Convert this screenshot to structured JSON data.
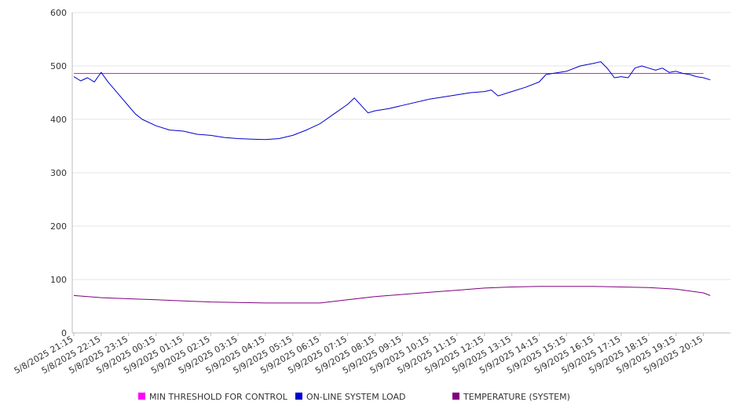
{
  "chart_data": {
    "type": "line",
    "title": "",
    "xlabel": "",
    "ylabel": "",
    "ylim": [
      0,
      600
    ],
    "yticks": [
      0,
      100,
      200,
      300,
      400,
      500,
      600
    ],
    "grid": true,
    "legend_position": "bottom",
    "xticks": [
      "5/8/2025 21:15",
      "5/8/2025 22:15",
      "5/8/2025 23:15",
      "5/9/2025 00:15",
      "5/9/2025 01:15",
      "5/9/2025 02:15",
      "5/9/2025 03:15",
      "5/9/2025 04:15",
      "5/9/2025 05:15",
      "5/9/2025 06:15",
      "5/9/2025 07:15",
      "5/9/2025 08:15",
      "5/9/2025 09:15",
      "5/9/2025 10:15",
      "5/9/2025 11:15",
      "5/9/2025 12:15",
      "5/9/2025 13:15",
      "5/9/2025 14:15",
      "5/9/2025 15:15",
      "5/9/2025 16:15",
      "5/9/2025 17:15",
      "5/9/2025 18:15",
      "5/9/2025 19:15",
      "5/9/2025 20:15"
    ],
    "series": [
      {
        "name": "MIN THRESHOLD FOR CONTROL",
        "color": "#ff00ff",
        "x": [
          "5/8/2025 21:15",
          "5/9/2025 20:15"
        ],
        "y": [
          486,
          486
        ]
      },
      {
        "name": "ON-LINE SYSTEM LOAD",
        "color": "#0000cc",
        "x": [
          "5/8/2025 21:15",
          "5/8/2025 21:30",
          "5/8/2025 21:45",
          "5/8/2025 22:00",
          "5/8/2025 22:15",
          "5/8/2025 22:30",
          "5/8/2025 22:45",
          "5/8/2025 23:00",
          "5/8/2025 23:15",
          "5/8/2025 23:30",
          "5/8/2025 23:45",
          "5/9/2025 00:15",
          "5/9/2025 00:45",
          "5/9/2025 01:15",
          "5/9/2025 01:45",
          "5/9/2025 02:15",
          "5/9/2025 02:45",
          "5/9/2025 03:15",
          "5/9/2025 03:45",
          "5/9/2025 04:15",
          "5/9/2025 04:45",
          "5/9/2025 05:15",
          "5/9/2025 05:45",
          "5/9/2025 06:15",
          "5/9/2025 06:45",
          "5/9/2025 07:15",
          "5/9/2025 07:30",
          "5/9/2025 07:45",
          "5/9/2025 08:00",
          "5/9/2025 08:15",
          "5/9/2025 08:45",
          "5/9/2025 09:15",
          "5/9/2025 10:15",
          "5/9/2025 11:15",
          "5/9/2025 11:45",
          "5/9/2025 12:15",
          "5/9/2025 12:30",
          "5/9/2025 12:45",
          "5/9/2025 13:15",
          "5/9/2025 13:45",
          "5/9/2025 14:15",
          "5/9/2025 14:30",
          "5/9/2025 15:15",
          "5/9/2025 15:45",
          "5/9/2025 16:15",
          "5/9/2025 16:30",
          "5/9/2025 16:45",
          "5/9/2025 17:00",
          "5/9/2025 17:15",
          "5/9/2025 17:30",
          "5/9/2025 17:45",
          "5/9/2025 18:00",
          "5/9/2025 18:15",
          "5/9/2025 18:30",
          "5/9/2025 18:45",
          "5/9/2025 19:00",
          "5/9/2025 19:15",
          "5/9/2025 19:30",
          "5/9/2025 19:45",
          "5/9/2025 20:00",
          "5/9/2025 20:15",
          "5/9/2025 20:30"
        ],
        "y": [
          480,
          472,
          478,
          470,
          488,
          470,
          455,
          440,
          425,
          410,
          400,
          388,
          380,
          378,
          372,
          370,
          366,
          364,
          363,
          362,
          364,
          370,
          380,
          392,
          410,
          428,
          440,
          426,
          412,
          416,
          420,
          426,
          438,
          446,
          450,
          452,
          455,
          444,
          452,
          460,
          470,
          484,
          490,
          500,
          505,
          508,
          495,
          478,
          480,
          478,
          496,
          500,
          496,
          492,
          496,
          488,
          490,
          486,
          484,
          480,
          478,
          474
        ]
      },
      {
        "name": "TEMPERATURE (SYSTEM)",
        "color": "#800080",
        "x": [
          "5/8/2025 21:15",
          "5/8/2025 22:15",
          "5/8/2025 23:15",
          "5/9/2025 00:15",
          "5/9/2025 01:15",
          "5/9/2025 02:15",
          "5/9/2025 03:15",
          "5/9/2025 04:15",
          "5/9/2025 05:15",
          "5/9/2025 06:15",
          "5/9/2025 07:15",
          "5/9/2025 08:15",
          "5/9/2025 09:15",
          "5/9/2025 10:15",
          "5/9/2025 11:15",
          "5/9/2025 12:15",
          "5/9/2025 13:15",
          "5/9/2025 14:15",
          "5/9/2025 15:15",
          "5/9/2025 16:15",
          "5/9/2025 17:15",
          "5/9/2025 18:15",
          "5/9/2025 19:15",
          "5/9/2025 20:15",
          "5/9/2025 20:30"
        ],
        "y": [
          70,
          66,
          64,
          62,
          60,
          58,
          57,
          56,
          56,
          56,
          62,
          68,
          72,
          76,
          80,
          84,
          86,
          87,
          87,
          87,
          86,
          85,
          82,
          75,
          70
        ]
      }
    ]
  }
}
